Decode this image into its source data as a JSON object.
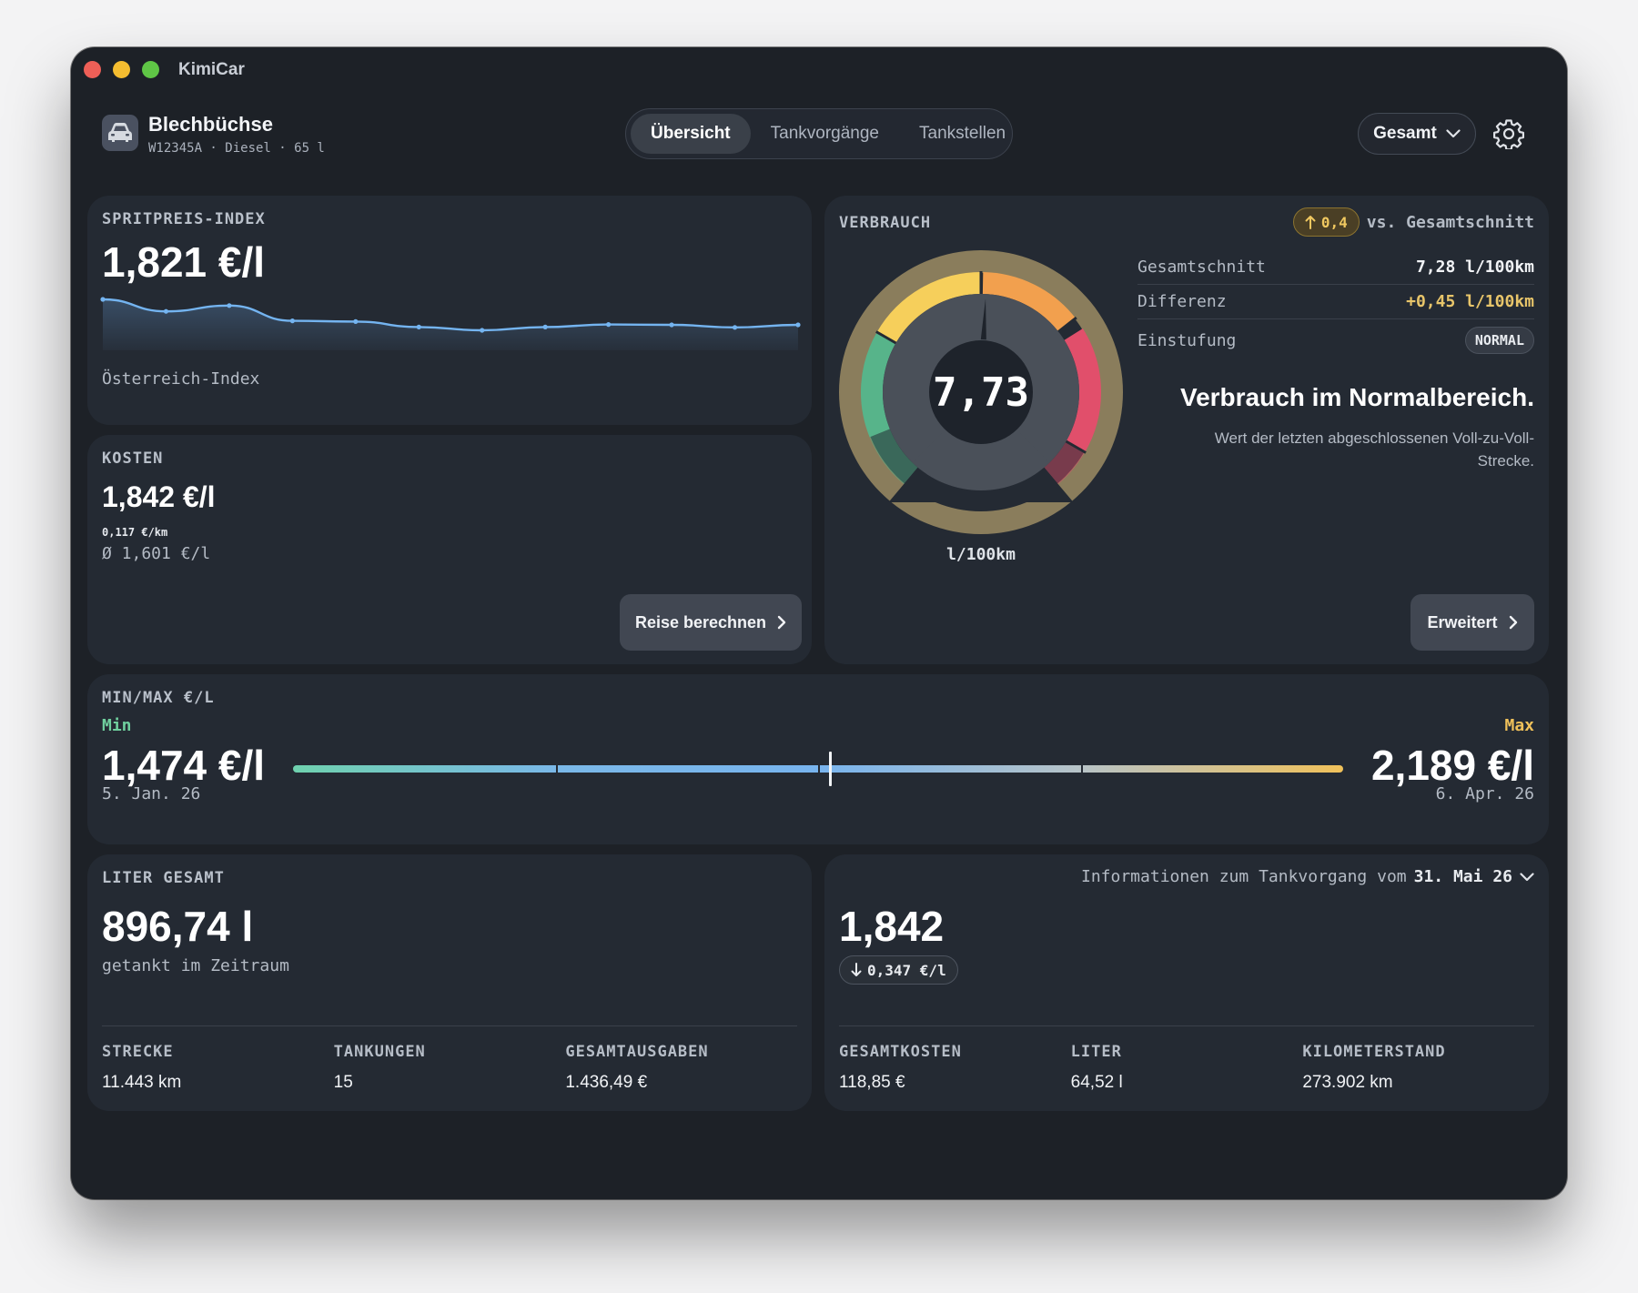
{
  "app": {
    "title": "KimiCar"
  },
  "vehicle": {
    "name": "Blechbüchse",
    "meta": "W12345A · Diesel · 65 l"
  },
  "tabs": [
    {
      "label": "Übersicht",
      "active": true
    },
    {
      "label": "Tankvorgänge",
      "active": false
    },
    {
      "label": "Tankstellen",
      "active": false
    }
  ],
  "period": {
    "label": "Gesamt"
  },
  "spritpreis": {
    "label": "SPRITPREIS-INDEX",
    "value": "1,821 €/l",
    "caption": "Österreich-Index",
    "sparkline": [
      1.895,
      1.862,
      1.878,
      1.836,
      1.834,
      1.819,
      1.81,
      1.819,
      1.826,
      1.825,
      1.818,
      1.825
    ],
    "line_color": "#74b4f0"
  },
  "kosten": {
    "label": "KOSTEN",
    "value": "1,842 €/l",
    "per_km": "0,117 €/km",
    "avg": "Ø 1,601 €/l",
    "button": "Reise berechnen"
  },
  "verbrauch": {
    "label": "VERBRAUCH",
    "badge": "0,4",
    "vs_text": "vs. Gesamtschnitt",
    "gauge_value": "7,73",
    "gauge_unit": "l/100km",
    "gauge_fraction": 0.51,
    "rows": [
      {
        "key": "Gesamtschnitt",
        "value": "7,28 l/100km"
      },
      {
        "key": "Differenz",
        "value": "+0,45 l/100km"
      },
      {
        "key": "Einstufung",
        "value": "NORMAL"
      }
    ],
    "headline": "Verbrauch im Normalbereich.",
    "description": "Wert der letzten abgeschlossenen Voll-zu-Voll-Strecke.",
    "button": "Erweitert",
    "colors": {
      "green": "#57b48a",
      "yellow": "#f6cf5b",
      "orange": "#f2a04e",
      "red": "#e14f6b",
      "accent": "#e8c56a"
    }
  },
  "minmax": {
    "label": "MIN/MAX €/L",
    "min_label": "Min",
    "max_label": "Max",
    "min_value": "1,474 €/l",
    "max_value": "2,189 €/l",
    "min_date": "5. Jan. 26",
    "max_date": "6. Apr. 26",
    "marker_fraction": 0.51,
    "min_color": "#6fcf9e",
    "max_color": "#f0c15a"
  },
  "liter": {
    "label": "LITER GESAMT",
    "value": "896,74 l",
    "caption": "getankt im Zeitraum",
    "stats": [
      {
        "label": "STRECKE",
        "value": "11.443 km"
      },
      {
        "label": "TANKUNGEN",
        "value": "15"
      },
      {
        "label": "GESAMTAUSGABEN",
        "value": "1.436,49 €"
      }
    ]
  },
  "info": {
    "header": "Informationen zum Tankvorgang vom",
    "date": "31. Mai 26",
    "value": "1,842",
    "delta": "0,347 €/l",
    "stats": [
      {
        "label": "GESAMTKOSTEN",
        "value": "118,85 €"
      },
      {
        "label": "LITER",
        "value": "64,52 l"
      },
      {
        "label": "KILOMETERSTAND",
        "value": "273.902 km"
      }
    ]
  }
}
